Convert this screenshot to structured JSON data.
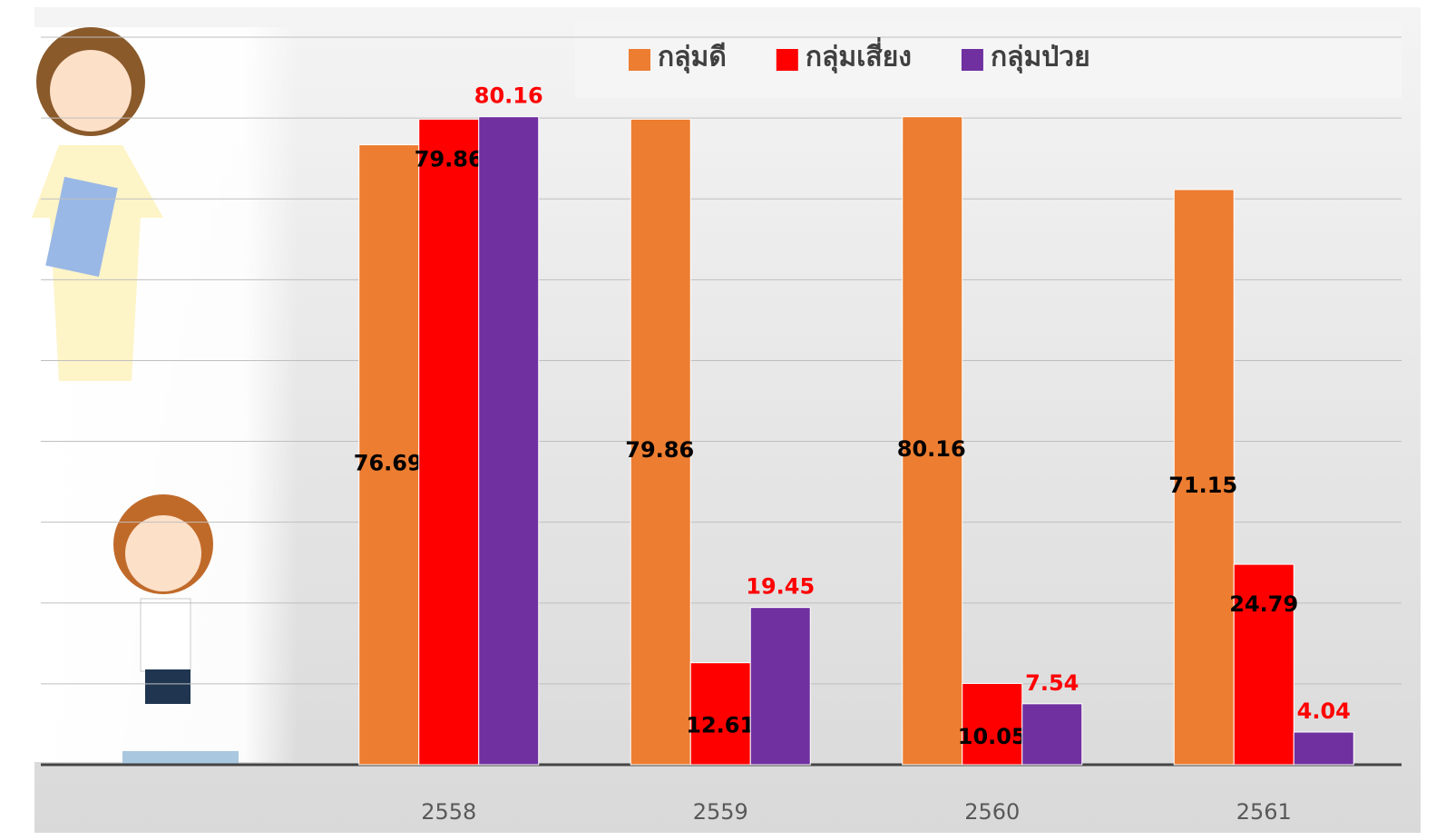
{
  "chart_data": {
    "type": "bar",
    "categories": [
      "2558",
      "2559",
      "2560",
      "2561"
    ],
    "series": [
      {
        "name": "กลุ่มดี",
        "color": "#ed7d31",
        "label_color": "#000000",
        "values": [
          76.69,
          79.86,
          80.16,
          71.15
        ]
      },
      {
        "name": "กลุ่มเสี่ยง",
        "color": "#ff0000",
        "label_color": "#000000",
        "values": [
          79.86,
          12.61,
          10.05,
          24.79
        ]
      },
      {
        "name": "กลุ่มป่วย",
        "color": "#7030a0",
        "label_color": "#ff0000",
        "values": [
          80.16,
          19.45,
          7.54,
          4.04
        ]
      }
    ],
    "ylim": [
      0,
      90
    ],
    "yticks": [
      0,
      10,
      20,
      30,
      40,
      50,
      60,
      70,
      80,
      90
    ],
    "grid": true
  }
}
